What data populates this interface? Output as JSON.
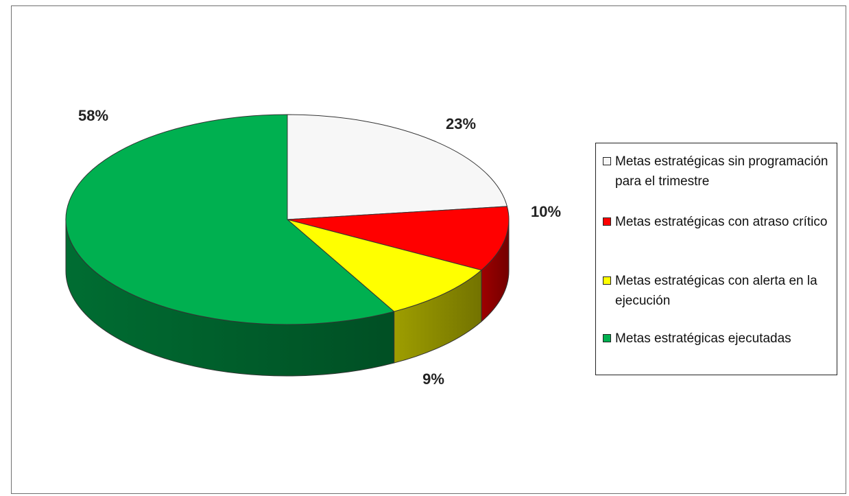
{
  "chart_data": {
    "type": "pie",
    "title": "",
    "three_d": true,
    "legend_position": "right",
    "slices": [
      {
        "label": "Metas estratégicas sin programación para el trimestre",
        "value": 23,
        "display": "23%",
        "color": "#f7f7f7"
      },
      {
        "label": "Metas estratégicas con atraso crítico",
        "value": 10,
        "display": "10%",
        "color": "#ff0000"
      },
      {
        "label": "Metas estratégicas con alerta en la ejecución",
        "value": 9,
        "display": "9%",
        "color": "#ffff00"
      },
      {
        "label": "Metas estratégicas ejecutadas",
        "value": 58,
        "display": "58%",
        "color": "#00b050"
      }
    ]
  }
}
